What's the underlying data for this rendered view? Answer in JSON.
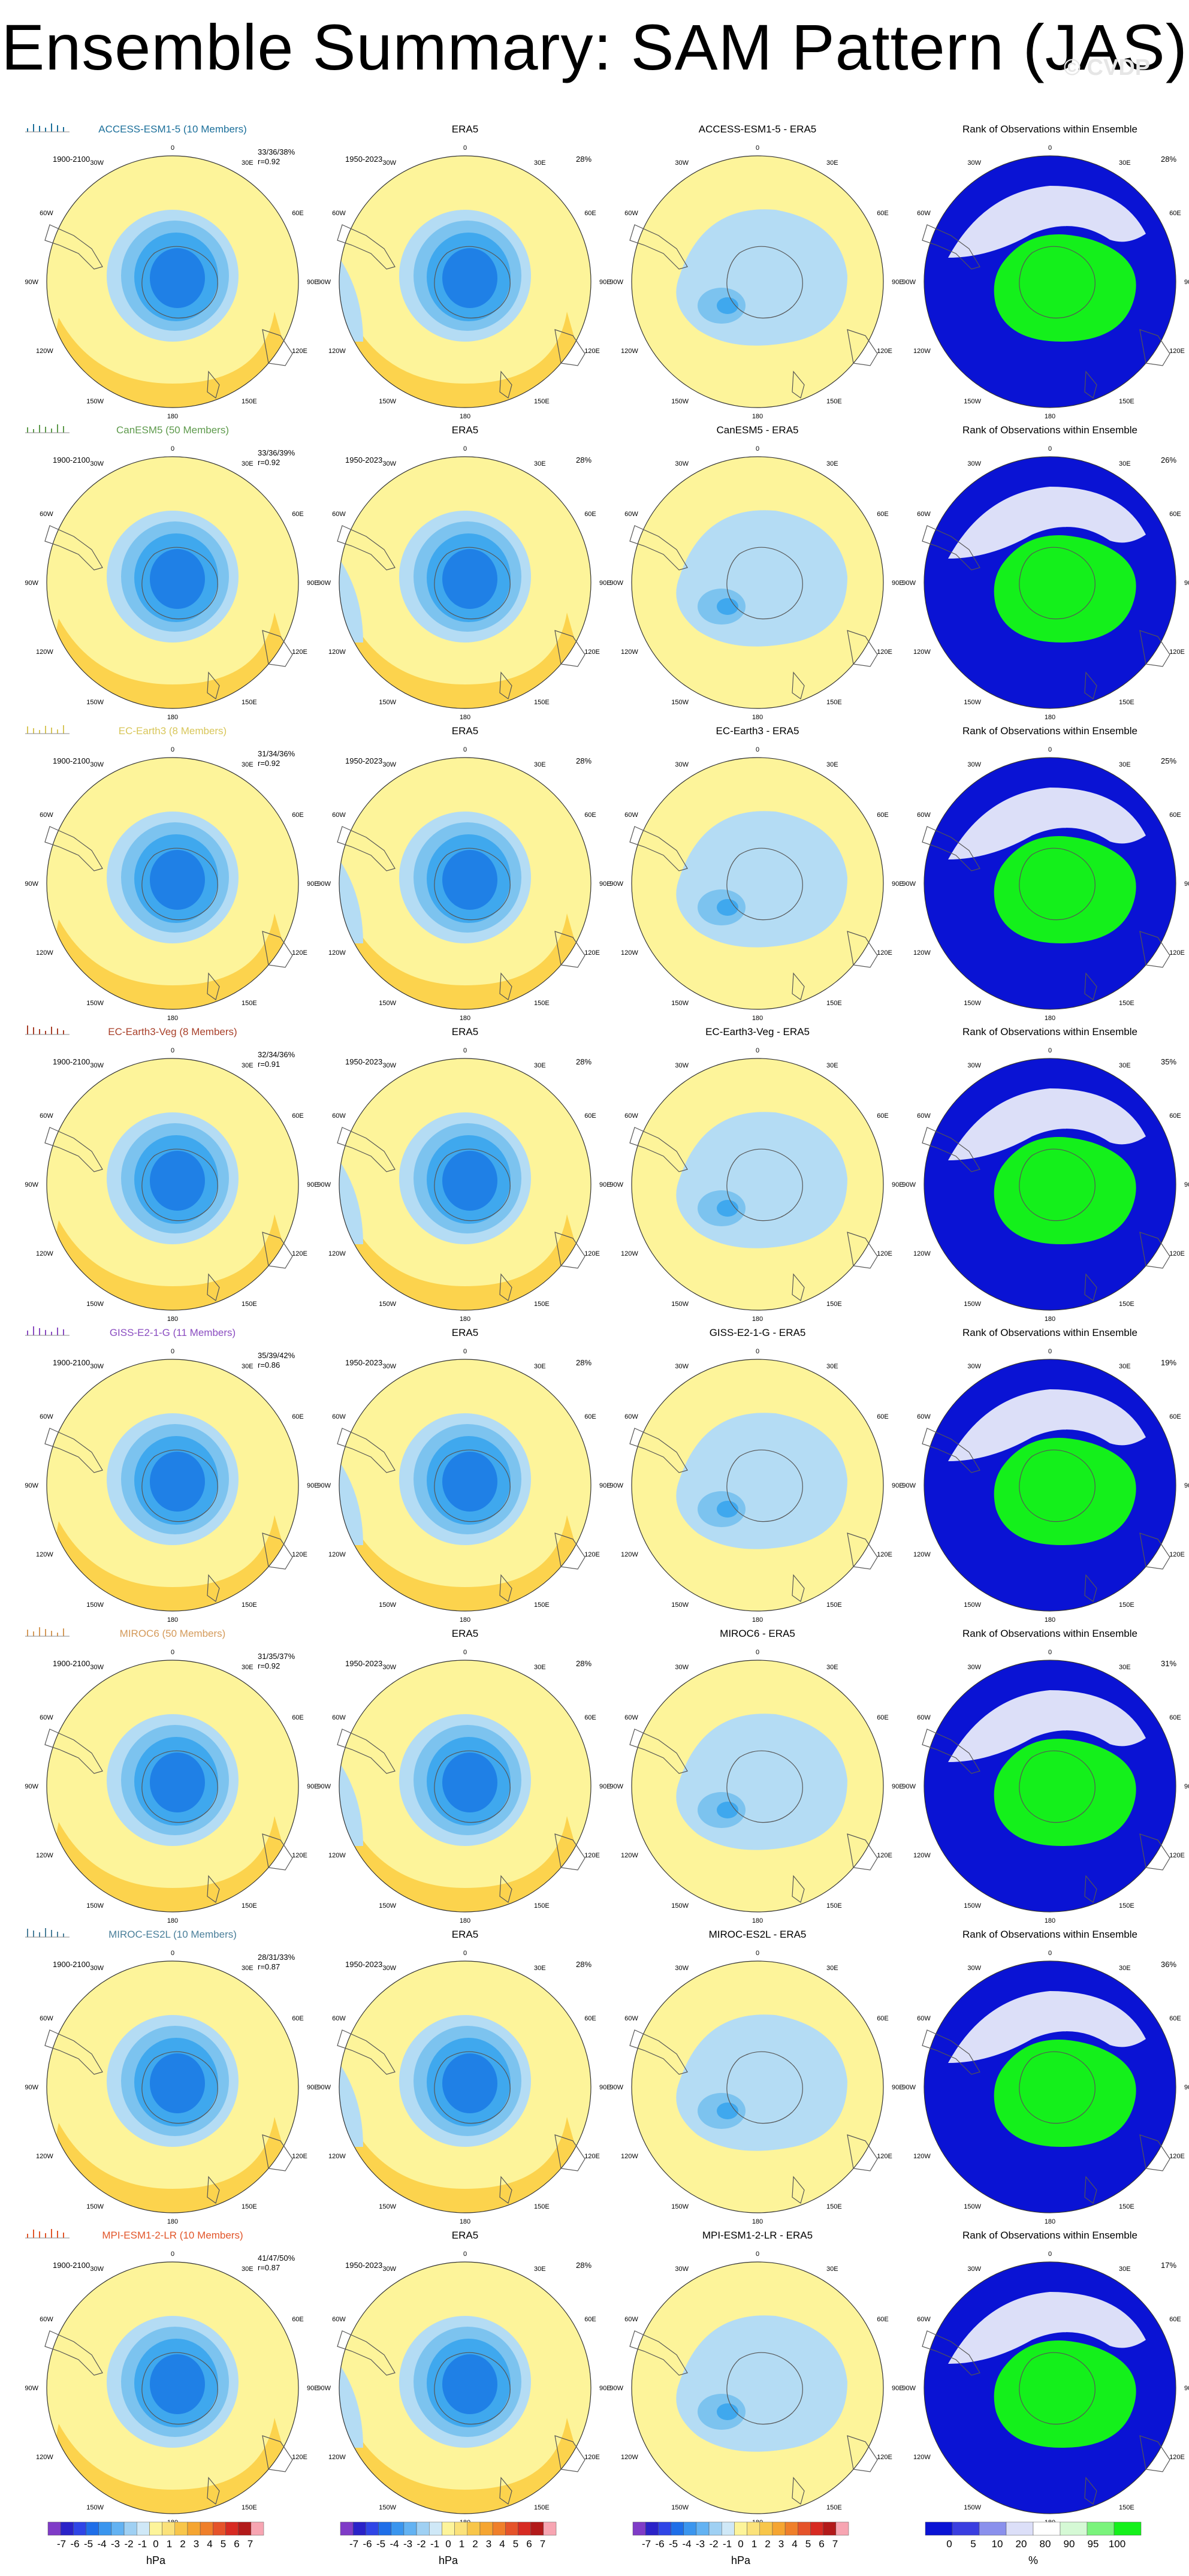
{
  "title": "Ensemble Summary: SAM Pattern (JAS)",
  "watermark": "© CVDP",
  "colors": {
    "pos1": "#fdf49a",
    "pos2": "#fcd34d",
    "pos3": "#f6a623",
    "neg1": "#b4dcf4",
    "neg2": "#7cc3ef",
    "neg3": "#3fa8ee",
    "neg4": "#1f80e6",
    "rank_low": "#0a13d4",
    "rank_mid": "#dcdff8",
    "rank_high": "#14f01b",
    "coast": "#555555"
  },
  "lon_labels": [
    "0",
    "30E",
    "60E",
    "90E",
    "120E",
    "150E",
    "180",
    "150W",
    "120W",
    "90W",
    "60W",
    "30W"
  ],
  "rows": [
    {
      "model_title": "ACCESS-ESM1-5 (10 Members)",
      "model_color": "#1b6f9a",
      "model_period": "1900-2100",
      "stats1": "33/36/38%",
      "stats2": "r=0.92",
      "era_title": "ERA5",
      "era_period": "1950-2023",
      "era_pct": "28%",
      "diff_title": "ACCESS-ESM1-5 - ERA5",
      "rank_title": "Rank of Observations within Ensemble",
      "rank_pct": "28%"
    },
    {
      "model_title": "CanESM5 (50 Members)",
      "model_color": "#5e9a4c",
      "model_period": "1900-2100",
      "stats1": "33/36/39%",
      "stats2": "r=0.92",
      "era_title": "ERA5",
      "era_period": "1950-2023",
      "era_pct": "28%",
      "diff_title": "CanESM5 - ERA5",
      "rank_title": "Rank of Observations within Ensemble",
      "rank_pct": "26%"
    },
    {
      "model_title": "EC-Earth3 (8 Members)",
      "model_color": "#d8c65a",
      "model_period": "1900-2100",
      "stats1": "31/34/36%",
      "stats2": "r=0.92",
      "era_title": "ERA5",
      "era_period": "1950-2023",
      "era_pct": "28%",
      "diff_title": "EC-Earth3 - ERA5",
      "rank_title": "Rank of Observations within Ensemble",
      "rank_pct": "25%"
    },
    {
      "model_title": "EC-Earth3-Veg (8 Members)",
      "model_color": "#a8402a",
      "model_period": "1900-2100",
      "stats1": "32/34/36%",
      "stats2": "r=0.91",
      "era_title": "ERA5",
      "era_period": "1950-2023",
      "era_pct": "28%",
      "diff_title": "EC-Earth3-Veg - ERA5",
      "rank_title": "Rank of Observations within Ensemble",
      "rank_pct": "35%"
    },
    {
      "model_title": "GISS-E2-1-G (11 Members)",
      "model_color": "#8a4cc0",
      "model_period": "1900-2100",
      "stats1": "35/39/42%",
      "stats2": "r=0.86",
      "era_title": "ERA5",
      "era_period": "1950-2023",
      "era_pct": "28%",
      "diff_title": "GISS-E2-1-G - ERA5",
      "rank_title": "Rank of Observations within Ensemble",
      "rank_pct": "19%"
    },
    {
      "model_title": "MIROC6 (50 Members)",
      "model_color": "#d49a5a",
      "model_period": "1900-2100",
      "stats1": "31/35/37%",
      "stats2": "r=0.92",
      "era_title": "ERA5",
      "era_period": "1950-2023",
      "era_pct": "28%",
      "diff_title": "MIROC6 - ERA5",
      "rank_title": "Rank of Observations within Ensemble",
      "rank_pct": "31%"
    },
    {
      "model_title": "MIROC-ES2L (10 Members)",
      "model_color": "#4a7f9a",
      "model_period": "1900-2100",
      "stats1": "28/31/33%",
      "stats2": "r=0.87",
      "era_title": "ERA5",
      "era_period": "1950-2023",
      "era_pct": "28%",
      "diff_title": "MIROC-ES2L - ERA5",
      "rank_title": "Rank of Observations within Ensemble",
      "rank_pct": "36%"
    },
    {
      "model_title": "MPI-ESM1-2-LR (10 Members)",
      "model_color": "#e2562a",
      "model_period": "1900-2100",
      "stats1": "41/47/50%",
      "stats2": "r=0.87",
      "era_title": "ERA5",
      "era_period": "1950-2023",
      "era_pct": "28%",
      "diff_title": "MPI-ESM1-2-LR - ERA5",
      "rank_title": "Rank of Observations within Ensemble",
      "rank_pct": "17%"
    }
  ],
  "colorbar": {
    "ticks": [
      "-7",
      "-6",
      "-5",
      "-4",
      "-3",
      "-2",
      "-1",
      "0",
      "1",
      "2",
      "3",
      "4",
      "5",
      "6",
      "7"
    ],
    "unit": "hPa",
    "colors": [
      "#7f3bc7",
      "#2a22c8",
      "#2f45e6",
      "#1f6ee8",
      "#3a95ee",
      "#63b2f2",
      "#9fd0f3",
      "#cfe8f7",
      "#fdf49a",
      "#fbe27a",
      "#f8c64a",
      "#f5a531",
      "#ef7f2a",
      "#e5532a",
      "#d72a22",
      "#b21a1a",
      "#f7a5b2"
    ]
  },
  "rankbar": {
    "ticks": [
      "0",
      "5",
      "10",
      "20",
      "80",
      "90",
      "95",
      "100"
    ],
    "unit": "%",
    "colors": [
      "#0a13d4",
      "#3a3ee0",
      "#8a90ec",
      "#dcdff8",
      "#ffffff",
      "#d5f9d5",
      "#7af37c",
      "#14f01b"
    ]
  }
}
